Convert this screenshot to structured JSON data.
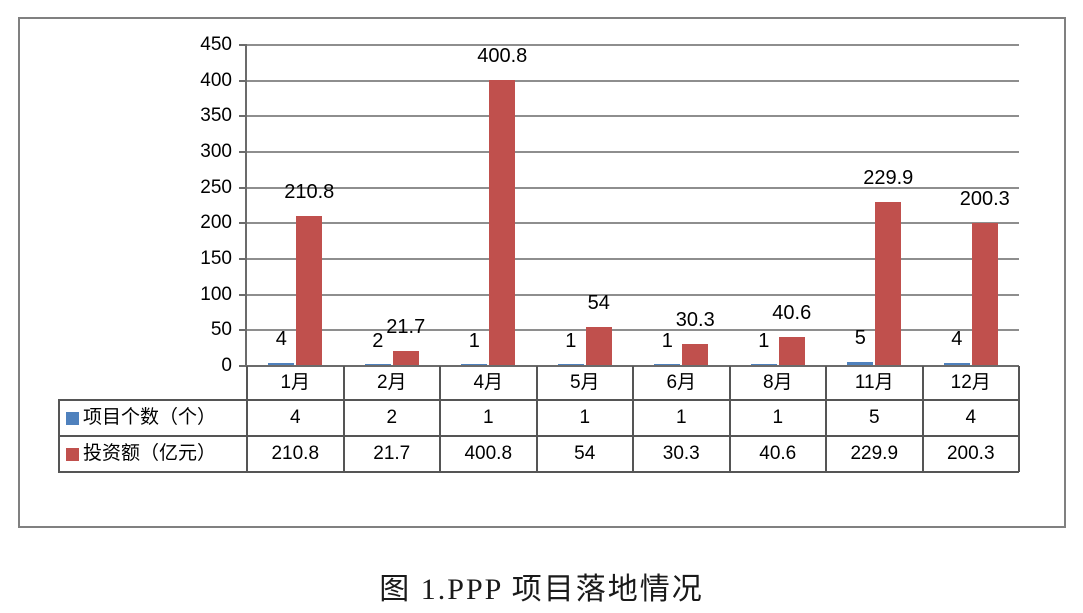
{
  "caption": "图 1.PPP 项目落地情况",
  "colors": {
    "bar_blue": "#4F81BD",
    "bar_red": "#C0504D",
    "gridline": "#8E8E8E",
    "axis": "#6B6B6B",
    "table_border": "#555555",
    "box_border": "#808080",
    "text": "#000000"
  },
  "chart_data": {
    "type": "bar",
    "title": "图 1.PPP 项目落地情况",
    "categories": [
      "1月",
      "2月",
      "4月",
      "5月",
      "6月",
      "8月",
      "11月",
      "12月"
    ],
    "series": [
      {
        "name": "项目个数（个）",
        "color_key": "bar_blue",
        "values": [
          4,
          2,
          1,
          1,
          1,
          1,
          5,
          4
        ]
      },
      {
        "name": "投资额（亿元）",
        "color_key": "bar_red",
        "values": [
          210.8,
          21.7,
          400.8,
          54,
          30.3,
          40.6,
          229.9,
          200.3
        ]
      }
    ],
    "ylim": [
      0,
      450
    ],
    "ytick_step": 50,
    "yticks": [
      0,
      50,
      100,
      150,
      200,
      250,
      300,
      350,
      400,
      450
    ],
    "xlabel": "",
    "ylabel": "",
    "grid": true,
    "data_labels": true,
    "legend_position": "data-table-left"
  }
}
